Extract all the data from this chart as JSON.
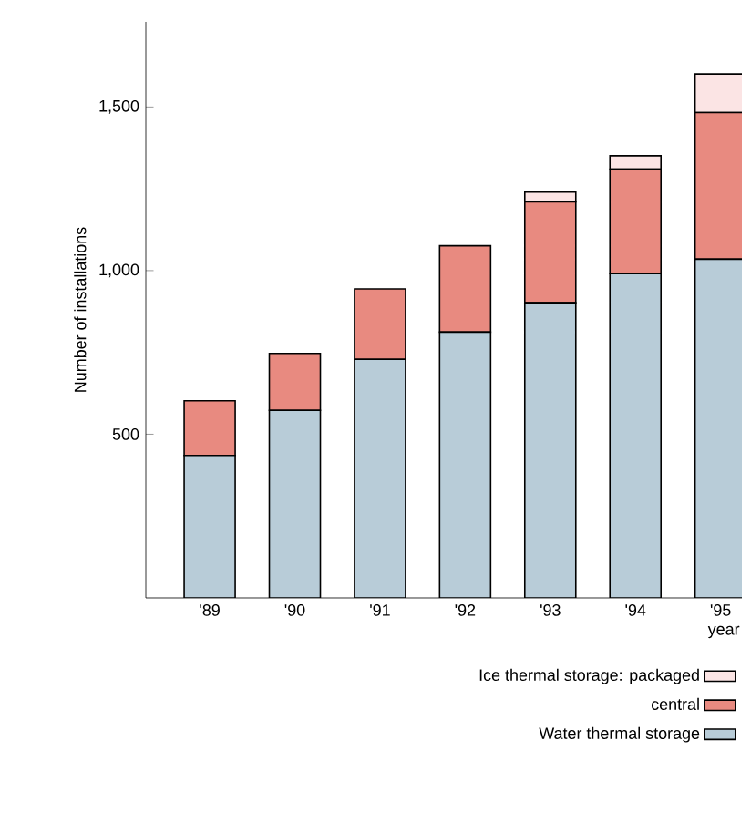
{
  "chart_data": {
    "type": "bar",
    "stacked": true,
    "xlabel": "year",
    "ylabel": "Number of installations",
    "categories": [
      "'89",
      "'90",
      "'91",
      "'92",
      "'93",
      "'94",
      "'95"
    ],
    "series": [
      {
        "name": "Water thermal storage",
        "color": "#b8ccd8",
        "values": [
          435,
          573,
          729,
          812,
          902,
          991,
          1035
        ]
      },
      {
        "name": "central",
        "color": "#e88a80",
        "values": [
          167,
          174,
          215,
          264,
          308,
          319,
          448
        ]
      },
      {
        "name": "Ice thermal storage: packaged",
        "color": "#fbe4e4",
        "values": [
          null,
          null,
          null,
          null,
          30,
          41,
          118
        ]
      }
    ],
    "ylim": [
      0,
      1760
    ],
    "yticks": [
      {
        "value": 500,
        "label": "500"
      },
      {
        "value": 1000,
        "label": "1,000"
      },
      {
        "value": 1500,
        "label": "1,500"
      }
    ],
    "legend": "bottom right"
  }
}
